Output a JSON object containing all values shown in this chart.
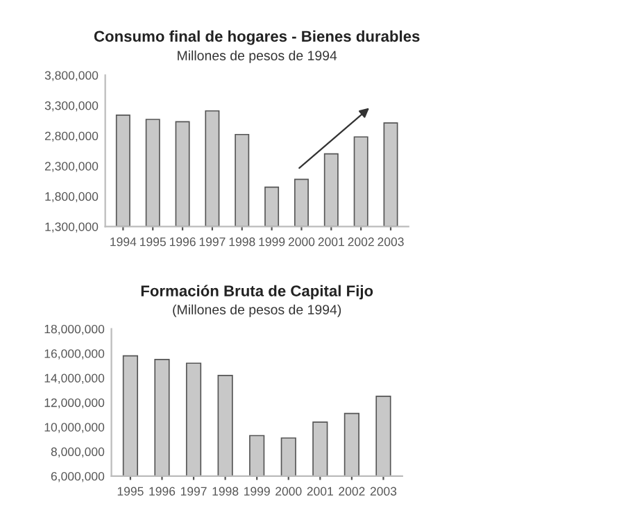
{
  "chart_data": [
    {
      "type": "bar",
      "title": "Consumo final de hogares - Bienes durables",
      "subtitle": "Millones de pesos de 1994",
      "categories": [
        "1994",
        "1995",
        "1996",
        "1997",
        "1998",
        "1999",
        "2000",
        "2001",
        "2002",
        "2003"
      ],
      "values": [
        3140000,
        3070000,
        3030000,
        3210000,
        2820000,
        1950000,
        2080000,
        2500000,
        2780000,
        3010000
      ],
      "color": "#c8c8c8",
      "ylim": [
        1300000,
        3800000
      ],
      "yticks": [
        {
          "value": 1300000,
          "label": "1,300,000"
        },
        {
          "value": 1800000,
          "label": "1,800,000"
        },
        {
          "value": 2300000,
          "label": "2,300,000"
        },
        {
          "value": 2800000,
          "label": "2,800,000"
        },
        {
          "value": 3300000,
          "label": "3,300,000"
        },
        {
          "value": 3800000,
          "label": "3,800,000"
        }
      ],
      "grid": false
    },
    {
      "type": "bar",
      "title": "Formación Bruta de Capital Fijo",
      "subtitle": "(Millones de pesos de 1994)",
      "categories": [
        "1995",
        "1996",
        "1997",
        "1998",
        "1999",
        "2000",
        "2001",
        "2002",
        "2003"
      ],
      "values": [
        15800000,
        15500000,
        15200000,
        14200000,
        9300000,
        9100000,
        10400000,
        11100000,
        12500000
      ],
      "color": "#c8c8c8",
      "ylim": [
        6000000,
        18000000
      ],
      "yticks": [
        {
          "value": 6000000,
          "label": "6,000,000"
        },
        {
          "value": 8000000,
          "label": "8,000,000"
        },
        {
          "value": 10000000,
          "label": "10,000,000"
        },
        {
          "value": 12000000,
          "label": "12,000,000"
        },
        {
          "value": 14000000,
          "label": "14,000,000"
        },
        {
          "value": 16000000,
          "label": "16,000,000"
        },
        {
          "value": 18000000,
          "label": "18,000,000"
        }
      ],
      "grid": false
    }
  ]
}
